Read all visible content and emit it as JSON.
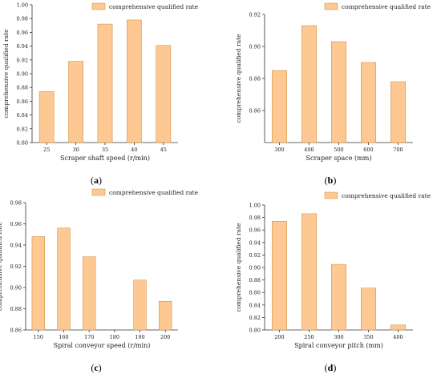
{
  "colors": {
    "bar": "#FDC891",
    "bar_stroke": "#C98A3C",
    "axis": "#333333"
  },
  "chart_data": [
    {
      "type": "bar",
      "panel_label": "a",
      "legend": "comprehensive qualified rate",
      "xlabel": "Scraper shaft speed (r/min)",
      "ylabel": "comprehensive qualified rate",
      "categories": [
        "25",
        "30",
        "35",
        "40",
        "45"
      ],
      "values": [
        0.874,
        0.918,
        0.972,
        0.978,
        0.941
      ],
      "ylim": [
        0.8,
        1.0
      ],
      "yticks": [
        "0.80",
        "0.82",
        "0.84",
        "0.86",
        "0.88",
        "0.90",
        "0.92",
        "0.94",
        "0.96",
        "0.98",
        "1.00"
      ]
    },
    {
      "type": "bar",
      "panel_label": "b",
      "legend": "comprehensive qualified rate",
      "xlabel": "Scraper space (mm)",
      "ylabel": "comprehensive qualified rate",
      "categories": [
        "300",
        "400",
        "500",
        "600",
        "700"
      ],
      "values": [
        0.885,
        0.913,
        0.903,
        0.89,
        0.878
      ],
      "ylim": [
        0.84,
        0.92
      ],
      "yticks": [
        "0.86",
        "0.88",
        "0.90",
        "0.92"
      ]
    },
    {
      "type": "bar",
      "panel_label": "c",
      "legend": "comprehensive qualified rate",
      "xlabel": "Spiral conveyor speed (r/min)",
      "ylabel": "comprehensive qualified rate",
      "categories": [
        "150",
        "160",
        "170",
        "180",
        "190",
        "200"
      ],
      "values": [
        0.948,
        0.956,
        0.929,
        null,
        0.907,
        0.887
      ],
      "ylim": [
        0.86,
        0.98
      ],
      "yticks": [
        "0.86",
        "0.88",
        "0.90",
        "0.92",
        "0.94",
        "0.96",
        "0.98"
      ]
    },
    {
      "type": "bar",
      "panel_label": "d",
      "legend": "comprehensive qualified rate",
      "xlabel": "Spiral conveyor pitch (mm)",
      "ylabel": "comprehensive qualified rate",
      "categories": [
        "200",
        "250",
        "300",
        "350",
        "400"
      ],
      "values": [
        0.974,
        0.986,
        0.905,
        0.867,
        0.808
      ],
      "ylim": [
        0.8,
        1.0
      ],
      "yticks": [
        "0.80",
        "0.82",
        "0.84",
        "0.86",
        "0.88",
        "0.90",
        "0.92",
        "0.94",
        "0.96",
        "0.98",
        "1.00"
      ]
    }
  ]
}
